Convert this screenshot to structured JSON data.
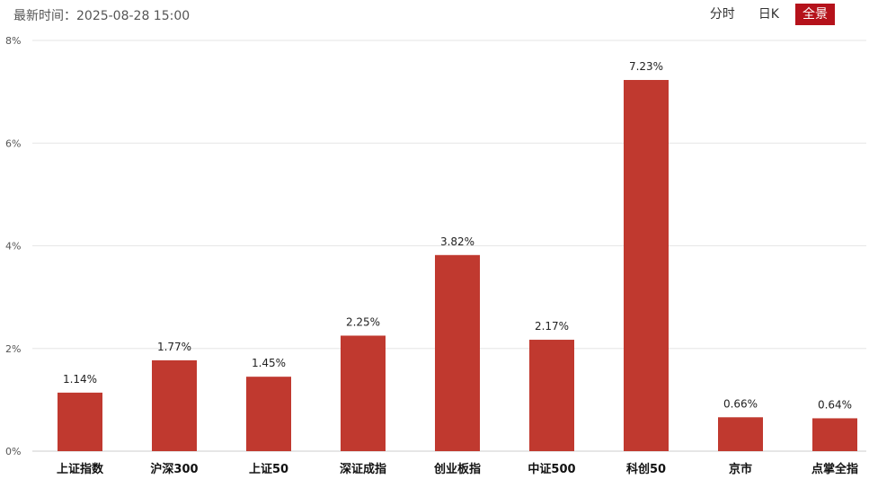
{
  "header": {
    "time_label": "最新时间：",
    "time_value": "2025-08-28 15:00",
    "tabs": [
      {
        "label": "分时",
        "active": false
      },
      {
        "label": "日K",
        "active": false
      },
      {
        "label": "全景",
        "active": true
      }
    ]
  },
  "colors": {
    "bar": "#c0392f",
    "active_tab": "#b5121b",
    "grid": "#e6e6e6"
  },
  "chart_data": {
    "type": "bar",
    "categories": [
      "上证指数",
      "沪深300",
      "上证50",
      "深证成指",
      "创业板指",
      "中证500",
      "科创50",
      "京市",
      "点掌全指"
    ],
    "values": [
      1.14,
      1.77,
      1.45,
      2.25,
      3.82,
      2.17,
      7.23,
      0.66,
      0.64
    ],
    "value_labels": [
      "1.14%",
      "1.77%",
      "1.45%",
      "2.25%",
      "3.82%",
      "2.17%",
      "7.23%",
      "0.66%",
      "0.64%"
    ],
    "ylim": [
      0,
      8
    ],
    "y_ticks": [
      0,
      2,
      4,
      6,
      8
    ],
    "y_tick_labels": [
      "0%",
      "2%",
      "4%",
      "6%",
      "8%"
    ],
    "grid": true,
    "title": "",
    "xlabel": "",
    "ylabel": ""
  }
}
